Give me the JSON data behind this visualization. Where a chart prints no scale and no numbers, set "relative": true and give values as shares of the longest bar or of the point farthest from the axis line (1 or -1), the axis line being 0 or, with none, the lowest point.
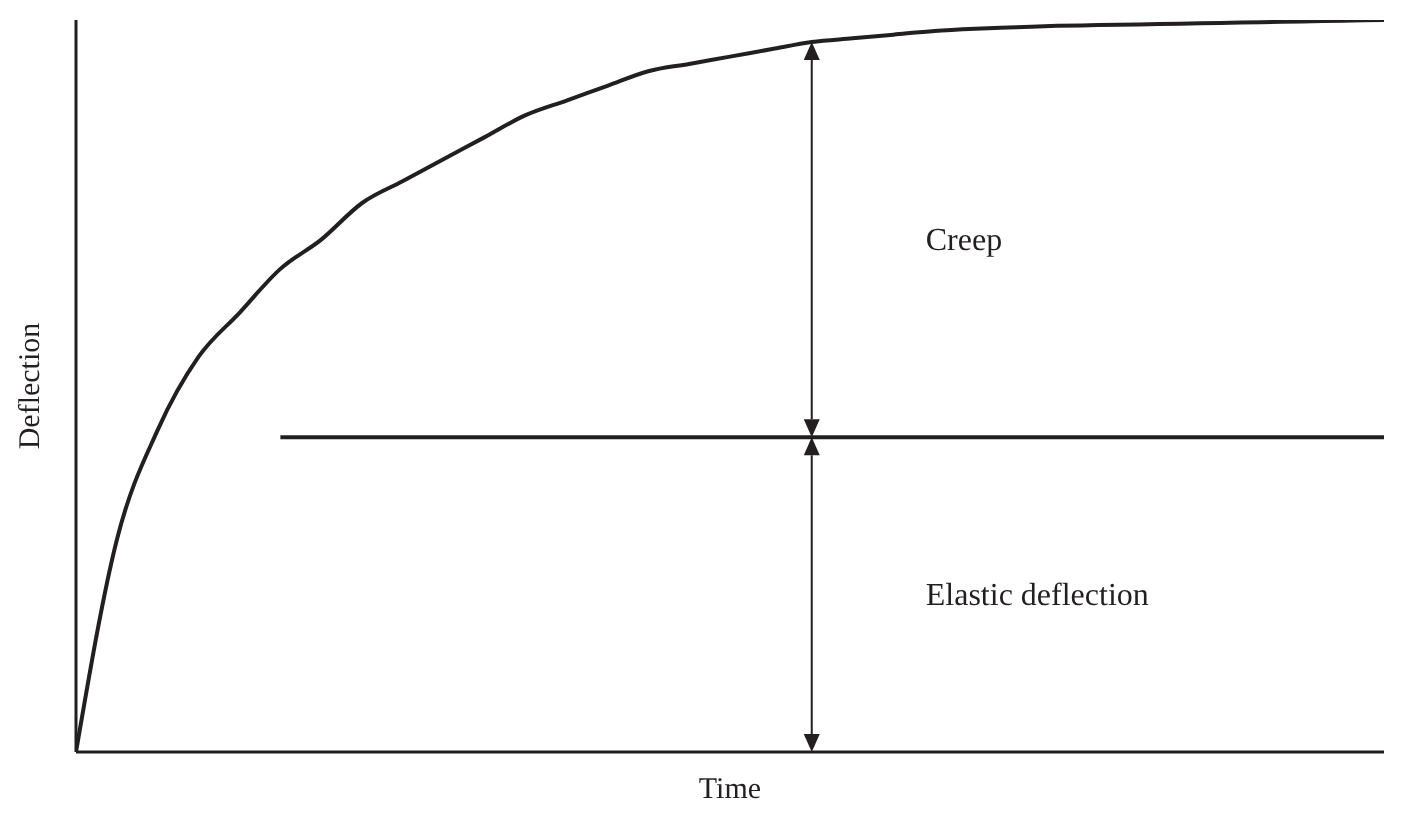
{
  "chart_data": {
    "type": "line",
    "relative": true,
    "xlabel": "Time",
    "ylabel": "Deflection",
    "marker": "none",
    "line_style": "solid",
    "categories": [
      null,
      null,
      null,
      null,
      null,
      null,
      null,
      null,
      null,
      null,
      null,
      null,
      null,
      null,
      null,
      null,
      null,
      null,
      null,
      null,
      null,
      null,
      null,
      null,
      null,
      null,
      null,
      null,
      null,
      null,
      null,
      null,
      null
    ],
    "series": [
      {
        "color": "#231f20",
        "values": [
          0,
          0.29,
          0.44,
          0.54,
          0.6,
          0.66,
          0.7,
          0.75,
          0.78,
          0.81,
          0.84,
          0.87,
          0.89,
          0.91,
          0.93,
          0.94,
          0.95,
          0.96,
          0.97,
          0.975,
          0.98,
          0.985,
          0.988,
          0.99,
          0.992,
          0.993,
          0.994,
          0.995,
          0.996,
          0.997,
          0.998,
          0.999,
          1
        ]
      },
      {
        "color": "#231f20",
        "values": [
          null,
          null,
          null,
          null,
          null,
          0.43,
          0.43,
          0.43,
          0.43,
          0.43,
          0.43,
          0.43,
          0.43,
          0.43,
          0.43,
          0.43,
          0.43,
          0.43,
          0.43,
          0.43,
          0.43,
          0.43,
          0.43,
          0.43,
          0.43,
          0.43,
          0.43,
          0.43,
          0.43,
          0.43,
          0.43,
          0.43,
          0.43
        ]
      }
    ],
    "annotations": [
      "Creep",
      "Elastic deflection"
    ]
  }
}
